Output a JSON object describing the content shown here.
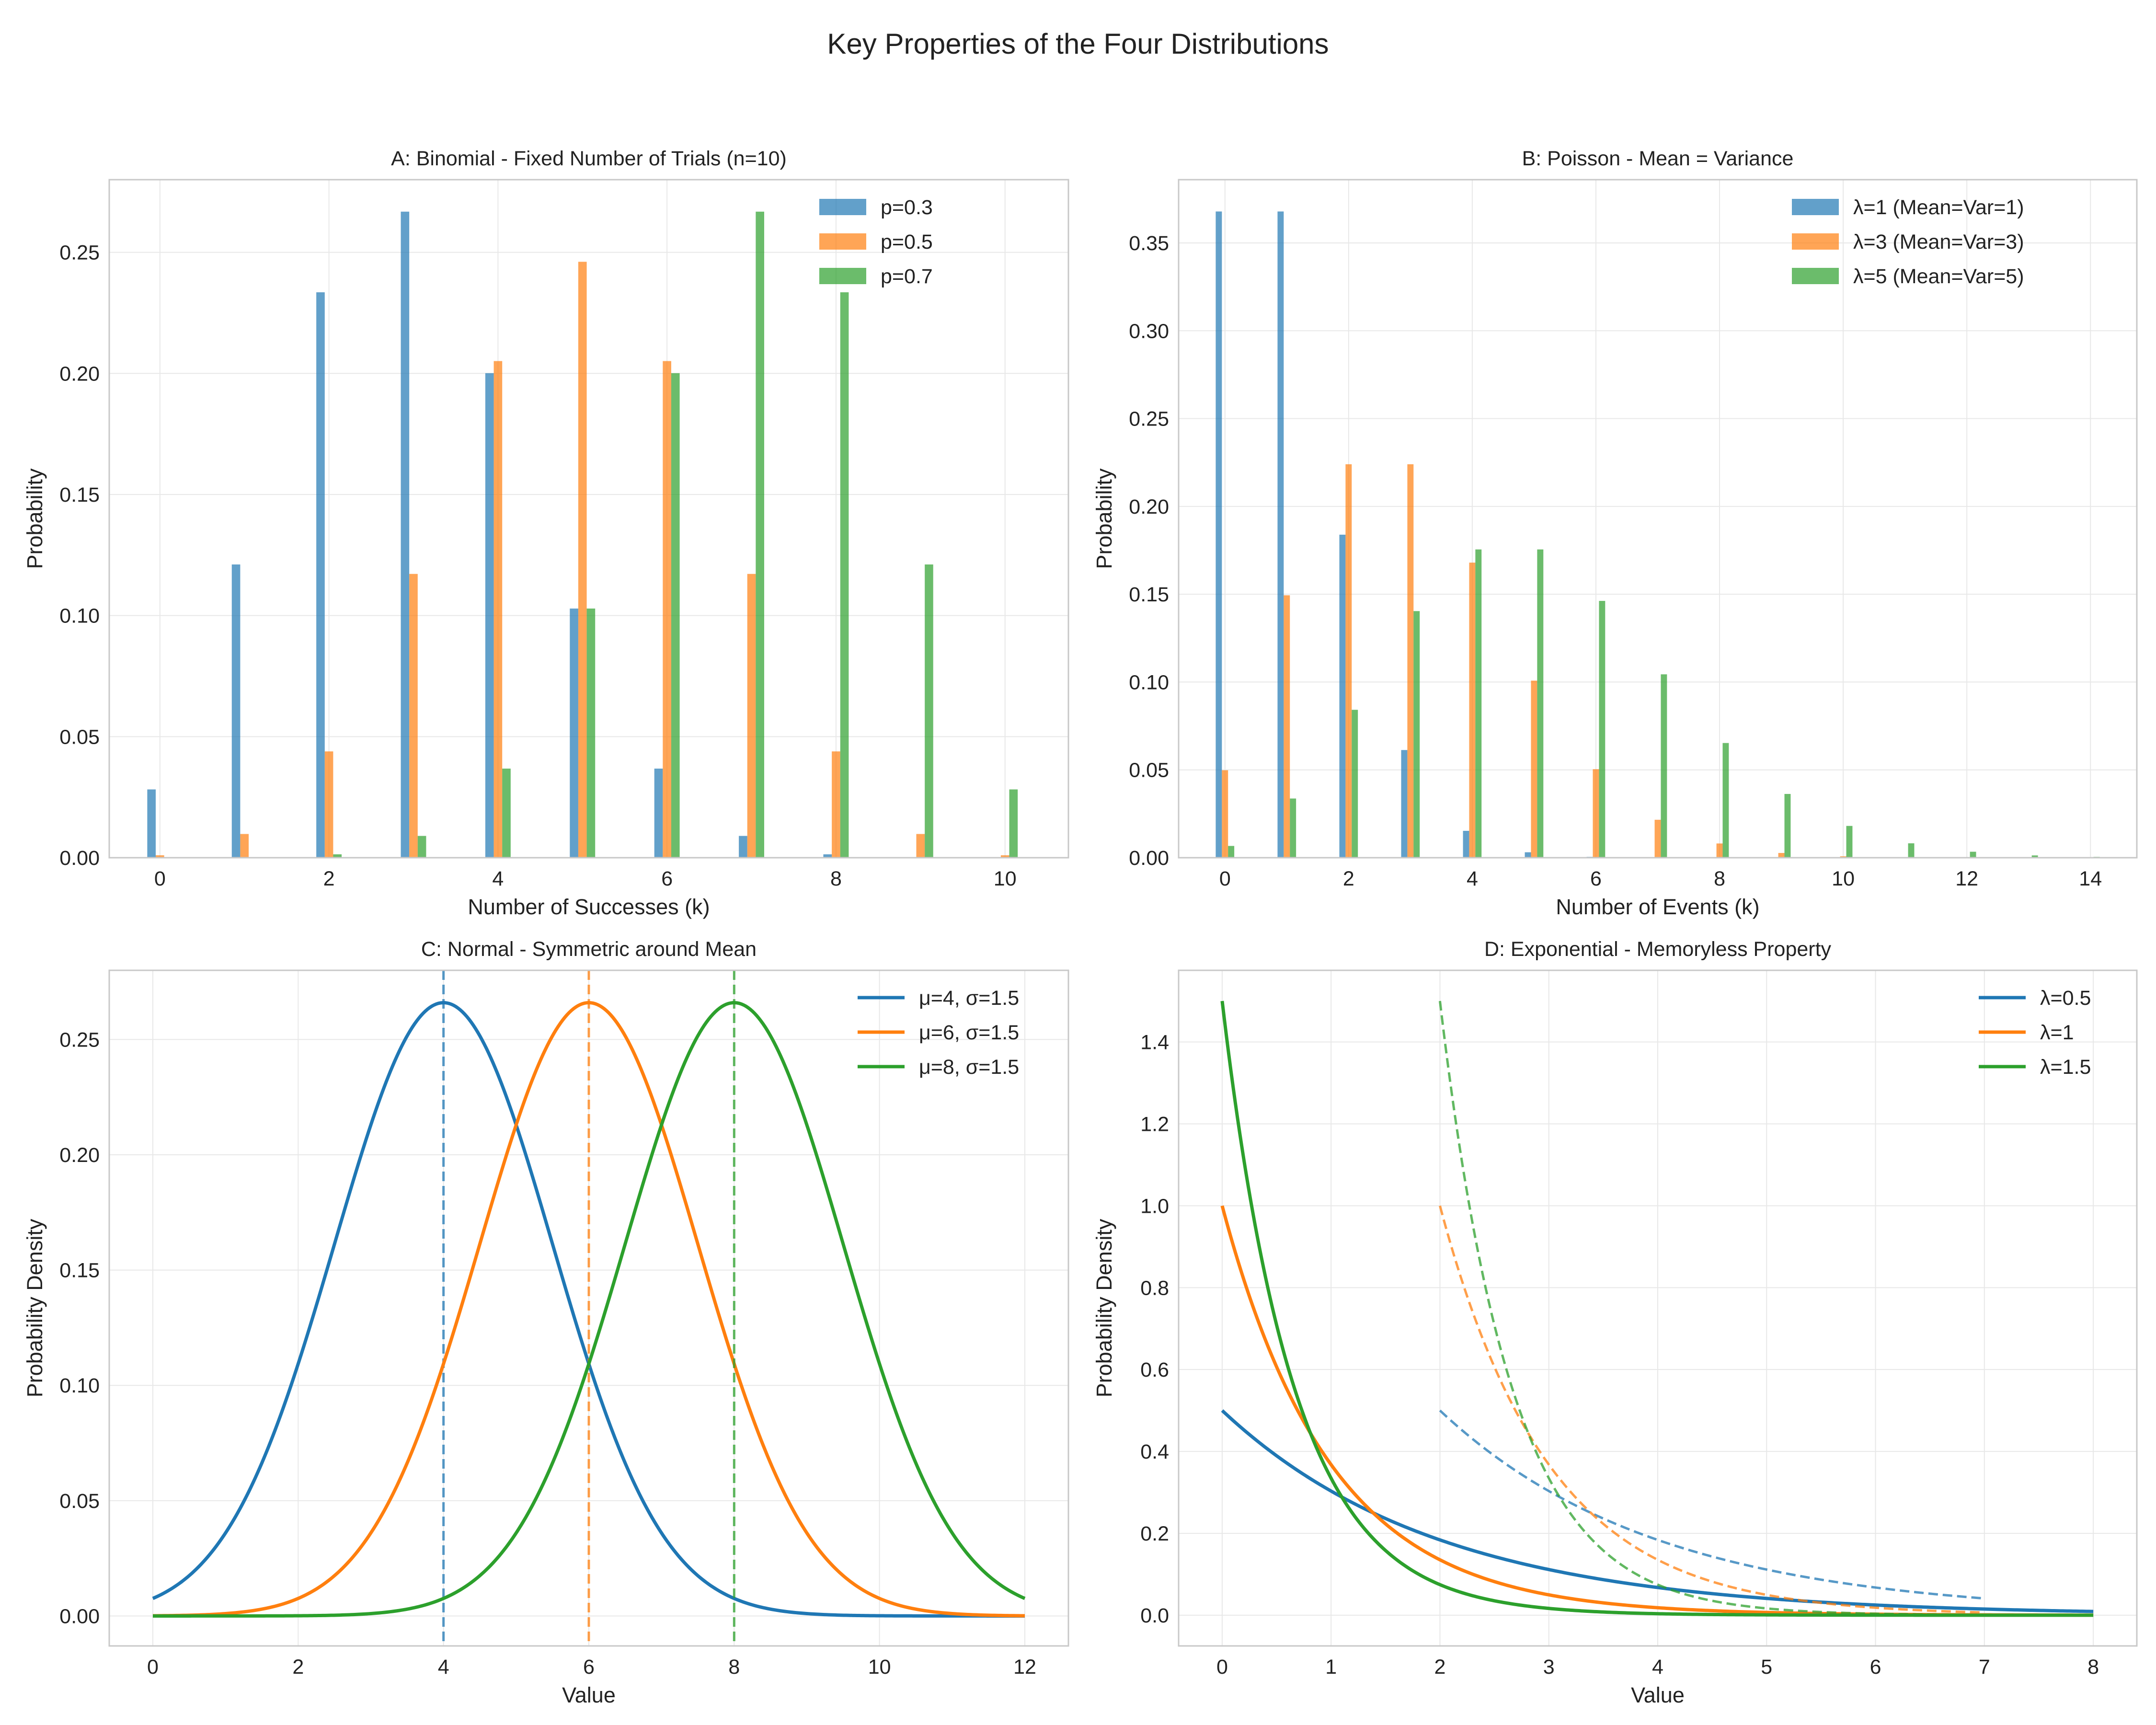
{
  "figure": {
    "suptitle": "Key Properties of the Four Distributions"
  },
  "chart_data": [
    {
      "type": "bar",
      "title": "A: Binomial - Fixed Number of Trials (n=10)",
      "xlabel": "Number of Successes (k)",
      "ylabel": "Probability",
      "xlim": [
        -0.6,
        10.75
      ],
      "ylim": [
        0,
        0.28
      ],
      "xticks": [
        0,
        2,
        4,
        6,
        8,
        10
      ],
      "yticks": [
        0.0,
        0.05,
        0.1,
        0.15,
        0.2,
        0.25
      ],
      "ytick_labels": [
        "0.00",
        "0.05",
        "0.10",
        "0.15",
        "0.20",
        "0.25"
      ],
      "grid": true,
      "legend_position": "top-right",
      "categories": [
        0,
        1,
        2,
        3,
        4,
        5,
        6,
        7,
        8,
        9,
        10
      ],
      "series": [
        {
          "name": "p=0.3",
          "color": "#1f77b4",
          "values": [
            0.0282,
            0.1211,
            0.2335,
            0.2668,
            0.2001,
            0.1029,
            0.0368,
            0.009,
            0.0014,
            0.0001,
            0.0
          ]
        },
        {
          "name": "p=0.5",
          "color": "#ff7f0e",
          "values": [
            0.001,
            0.0098,
            0.0439,
            0.1172,
            0.2051,
            0.2461,
            0.2051,
            0.1172,
            0.0439,
            0.0098,
            0.001
          ]
        },
        {
          "name": "p=0.7",
          "color": "#2ca02c",
          "values": [
            0.0,
            0.0001,
            0.0014,
            0.009,
            0.0368,
            0.1029,
            0.2001,
            0.2668,
            0.2335,
            0.1211,
            0.0282
          ]
        }
      ]
    },
    {
      "type": "bar",
      "title": "B: Poisson - Mean = Variance",
      "xlabel": "Number of Events (k)",
      "ylabel": "Probability",
      "xlim": [
        -0.75,
        14.75
      ],
      "ylim": [
        0,
        0.386
      ],
      "xticks": [
        0,
        2,
        4,
        6,
        8,
        10,
        12,
        14
      ],
      "yticks": [
        0.0,
        0.05,
        0.1,
        0.15,
        0.2,
        0.25,
        0.3,
        0.35
      ],
      "ytick_labels": [
        "0.00",
        "0.05",
        "0.10",
        "0.15",
        "0.20",
        "0.25",
        "0.30",
        "0.35"
      ],
      "grid": true,
      "legend_position": "top-right",
      "categories": [
        0,
        1,
        2,
        3,
        4,
        5,
        6,
        7,
        8,
        9,
        10,
        11,
        12,
        13,
        14
      ],
      "series": [
        {
          "name": "λ=1 (Mean=Var=1)",
          "color": "#1f77b4",
          "values": [
            0.3679,
            0.3679,
            0.1839,
            0.0613,
            0.0153,
            0.0031,
            0.0005,
            0.0001,
            0.0,
            0.0,
            0.0,
            0.0,
            0.0,
            0.0,
            0.0
          ]
        },
        {
          "name": "λ=3 (Mean=Var=3)",
          "color": "#ff7f0e",
          "values": [
            0.0498,
            0.1494,
            0.224,
            0.224,
            0.168,
            0.1008,
            0.0504,
            0.0216,
            0.0081,
            0.0027,
            0.0008,
            0.0002,
            0.0001,
            0.0,
            0.0
          ]
        },
        {
          "name": "λ=5 (Mean=Var=5)",
          "color": "#2ca02c",
          "values": [
            0.0067,
            0.0337,
            0.0842,
            0.1404,
            0.1755,
            0.1755,
            0.1462,
            0.1044,
            0.0653,
            0.0363,
            0.0181,
            0.0082,
            0.0034,
            0.0013,
            0.0005
          ]
        }
      ]
    },
    {
      "type": "line",
      "title": "C: Normal - Symmetric around Mean",
      "xlabel": "Value",
      "ylabel": "Probability Density",
      "xlim": [
        -0.6,
        12.6
      ],
      "ylim": [
        -0.013,
        0.28
      ],
      "xticks": [
        0,
        2,
        4,
        6,
        8,
        10,
        12
      ],
      "yticks": [
        0.0,
        0.05,
        0.1,
        0.15,
        0.2,
        0.25
      ],
      "ytick_labels": [
        "0.00",
        "0.05",
        "0.10",
        "0.15",
        "0.20",
        "0.25"
      ],
      "grid": true,
      "legend_position": "top-right",
      "x_range": [
        0,
        12
      ],
      "series": [
        {
          "name": "μ=4, σ=1.5",
          "color": "#1f77b4",
          "mean": 4,
          "sd": 1.5
        },
        {
          "name": "μ=6, σ=1.5",
          "color": "#ff7f0e",
          "mean": 6,
          "sd": 1.5
        },
        {
          "name": "μ=8, σ=1.5",
          "color": "#2ca02c",
          "mean": 8,
          "sd": 1.5
        }
      ],
      "mean_markers": [
        4,
        6,
        8
      ]
    },
    {
      "type": "line",
      "title": "D: Exponential - Memoryless Property",
      "xlabel": "Value",
      "ylabel": "Probability Density",
      "xlim": [
        -0.4,
        8.4
      ],
      "ylim": [
        -0.075,
        1.575
      ],
      "xticks": [
        0,
        1,
        2,
        3,
        4,
        5,
        6,
        7,
        8
      ],
      "yticks": [
        0.0,
        0.2,
        0.4,
        0.6,
        0.8,
        1.0,
        1.2,
        1.4
      ],
      "ytick_labels": [
        "0.0",
        "0.2",
        "0.4",
        "0.6",
        "0.8",
        "1.0",
        "1.2",
        "1.4"
      ],
      "grid": true,
      "legend_position": "top-right",
      "x_range": [
        0,
        8
      ],
      "series": [
        {
          "name": "λ=0.5",
          "color": "#1f77b4",
          "rate": 0.5
        },
        {
          "name": "λ=1",
          "color": "#ff7f0e",
          "rate": 1
        },
        {
          "name": "λ=1.5",
          "color": "#2ca02c",
          "rate": 1.5
        }
      ],
      "shifted_curves": {
        "shift": 2,
        "x_range": [
          2,
          7
        ]
      }
    }
  ]
}
